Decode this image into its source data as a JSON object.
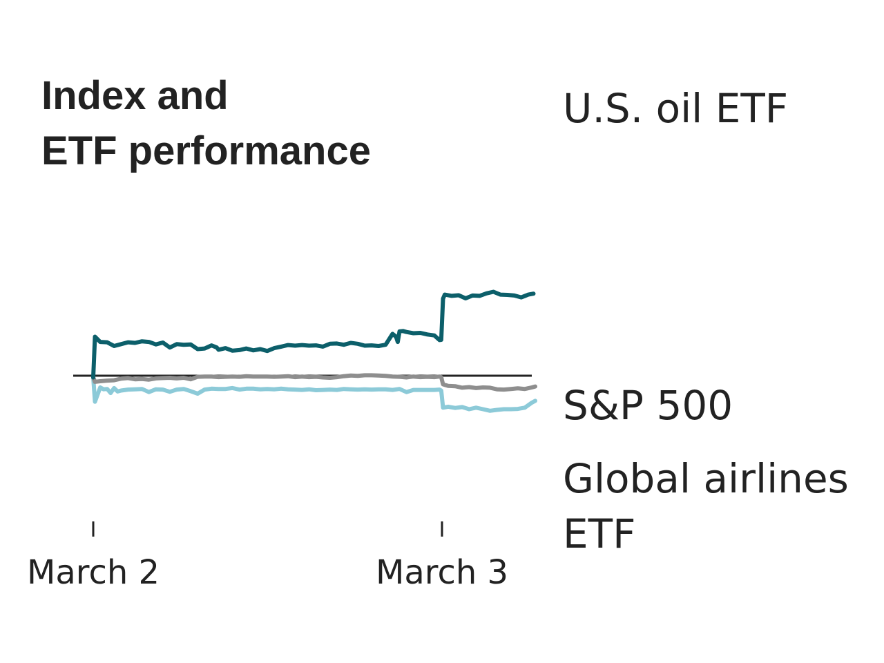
{
  "chart_data": {
    "type": "line",
    "title_lines": [
      "Index and",
      "ETF performance"
    ],
    "xlabel": "",
    "ylabel": "",
    "x_ticks": [
      {
        "label": "March 2",
        "x": 0
      },
      {
        "label": "March 3",
        "x": 1
      }
    ],
    "x_range": [
      0,
      1.27
    ],
    "y_range": [
      -0.044,
      0.0857
    ],
    "baseline": 0,
    "series": [
      {
        "name": "U.S. oil ETF",
        "label_lines": [
          "U.S. oil ETF"
        ],
        "color": "#0c5f6a",
        "x": [
          0,
          0.005,
          0.02,
          0.04,
          0.06,
          0.08,
          0.1,
          0.12,
          0.14,
          0.16,
          0.18,
          0.2,
          0.22,
          0.24,
          0.26,
          0.28,
          0.3,
          0.32,
          0.34,
          0.355,
          0.36,
          0.38,
          0.4,
          0.42,
          0.44,
          0.46,
          0.48,
          0.5,
          0.52,
          0.54,
          0.56,
          0.58,
          0.6,
          0.62,
          0.64,
          0.66,
          0.68,
          0.7,
          0.72,
          0.74,
          0.76,
          0.78,
          0.8,
          0.82,
          0.84,
          0.86,
          0.87,
          0.875,
          0.88,
          0.89,
          0.9,
          0.92,
          0.94,
          0.96,
          0.98,
          0.99,
          0.995,
          1.0,
          1.005,
          1.01,
          1.03,
          1.05,
          1.07,
          1.09,
          1.11,
          1.13,
          1.15,
          1.17,
          1.19,
          1.21,
          1.23,
          1.25,
          1.265
        ],
        "values": [
          0,
          0.0131,
          0.0114,
          0.0113,
          0.0101,
          0.0107,
          0.0113,
          0.0111,
          0.0116,
          0.0114,
          0.0106,
          0.0112,
          0.0096,
          0.0107,
          0.0105,
          0.0106,
          0.0091,
          0.0093,
          0.0103,
          0.0096,
          0.0089,
          0.0094,
          0.0086,
          0.0088,
          0.0093,
          0.0087,
          0.0091,
          0.0085,
          0.0094,
          0.0099,
          0.0104,
          0.0102,
          0.0104,
          0.0102,
          0.0103,
          0.0099,
          0.0108,
          0.0109,
          0.0105,
          0.0111,
          0.0108,
          0.0102,
          0.0103,
          0.0101,
          0.0105,
          0.014,
          0.0131,
          0.0114,
          0.0148,
          0.0149,
          0.0146,
          0.0142,
          0.0143,
          0.0138,
          0.0135,
          0.0125,
          0.012,
          0.0121,
          0.0253,
          0.0266,
          0.0262,
          0.0264,
          0.0254,
          0.0263,
          0.0262,
          0.027,
          0.0275,
          0.0266,
          0.0265,
          0.0263,
          0.0257,
          0.0266,
          0.0269
        ]
      },
      {
        "name": "S&P 500",
        "label_lines": [
          "S&P 500"
        ],
        "color": "#8e8e8e",
        "x": [
          0,
          0.005,
          0.02,
          0.04,
          0.06,
          0.08,
          0.1,
          0.12,
          0.14,
          0.16,
          0.18,
          0.2,
          0.22,
          0.24,
          0.26,
          0.28,
          0.3,
          0.32,
          0.34,
          0.36,
          0.38,
          0.4,
          0.42,
          0.44,
          0.46,
          0.48,
          0.5,
          0.52,
          0.54,
          0.56,
          0.58,
          0.6,
          0.62,
          0.64,
          0.66,
          0.68,
          0.7,
          0.72,
          0.74,
          0.76,
          0.78,
          0.8,
          0.82,
          0.84,
          0.86,
          0.88,
          0.9,
          0.92,
          0.94,
          0.96,
          0.98,
          0.995,
          1.0,
          1.005,
          1.02,
          1.04,
          1.06,
          1.08,
          1.1,
          1.12,
          1.14,
          1.16,
          1.18,
          1.2,
          1.22,
          1.24,
          1.26,
          1.27
        ],
        "values": [
          0,
          -0.0014,
          -0.0012,
          -0.001,
          -0.0009,
          -0.0004,
          -0.0002,
          -0.0006,
          -0.0005,
          -0.0007,
          -0.0003,
          -0.0002,
          -0.0001,
          -0.0003,
          -0.0001,
          -0.0006,
          0.0002,
          0.0003,
          0.0003,
          0.0001,
          0.0002,
          0.0003,
          0.0002,
          0.0004,
          0.0003,
          0.0003,
          0.0003,
          0.0002,
          0.0003,
          0.0004,
          0.0001,
          0.0003,
          0.0001,
          0.0002,
          0.0,
          -0.0001,
          0.0001,
          0.0004,
          0.0006,
          0.0005,
          0.0007,
          0.0007,
          0.0006,
          0.0005,
          0.0003,
          0.0002,
          0.0,
          0.0003,
          0.0001,
          0.0002,
          0.0001,
          0.0003,
          0.0001,
          -0.0022,
          -0.0027,
          -0.0028,
          -0.0033,
          -0.0031,
          -0.0034,
          -0.0032,
          -0.0033,
          -0.0038,
          -0.0039,
          -0.0037,
          -0.0035,
          -0.0037,
          -0.0032,
          -0.0029
        ]
      },
      {
        "name": "Global airlines ETF",
        "label_lines": [
          "Global airlines",
          "ETF"
        ],
        "color": "#8ccad8",
        "x": [
          0,
          0.005,
          0.02,
          0.03,
          0.04,
          0.05,
          0.06,
          0.07,
          0.08,
          0.1,
          0.12,
          0.14,
          0.16,
          0.18,
          0.2,
          0.22,
          0.24,
          0.26,
          0.28,
          0.3,
          0.32,
          0.34,
          0.36,
          0.38,
          0.4,
          0.42,
          0.44,
          0.46,
          0.48,
          0.5,
          0.52,
          0.54,
          0.56,
          0.58,
          0.6,
          0.62,
          0.64,
          0.66,
          0.68,
          0.7,
          0.72,
          0.74,
          0.76,
          0.78,
          0.8,
          0.82,
          0.84,
          0.86,
          0.88,
          0.9,
          0.92,
          0.94,
          0.96,
          0.98,
          0.995,
          1.0,
          1.005,
          1.02,
          1.04,
          1.06,
          1.08,
          1.1,
          1.12,
          1.14,
          1.16,
          1.18,
          1.2,
          1.22,
          1.24,
          1.26,
          1.27
        ],
        "values": [
          0,
          -0.0078,
          -0.0032,
          -0.0038,
          -0.0037,
          -0.005,
          -0.0034,
          -0.0045,
          -0.0042,
          -0.0039,
          -0.0038,
          -0.0037,
          -0.0047,
          -0.0038,
          -0.0039,
          -0.0046,
          -0.0039,
          -0.0037,
          -0.0044,
          -0.0052,
          -0.0039,
          -0.0036,
          -0.0037,
          -0.0037,
          -0.0034,
          -0.0039,
          -0.0036,
          -0.0036,
          -0.0038,
          -0.0037,
          -0.0038,
          -0.0036,
          -0.0038,
          -0.0039,
          -0.004,
          -0.0038,
          -0.0041,
          -0.004,
          -0.0039,
          -0.004,
          -0.0037,
          -0.0038,
          -0.0039,
          -0.0038,
          -0.0039,
          -0.0038,
          -0.0038,
          -0.004,
          -0.0037,
          -0.0047,
          -0.004,
          -0.004,
          -0.004,
          -0.004,
          -0.0039,
          -0.0042,
          -0.0097,
          -0.0094,
          -0.0098,
          -0.0095,
          -0.0102,
          -0.0097,
          -0.0102,
          -0.0107,
          -0.0104,
          -0.0102,
          -0.0102,
          -0.0101,
          -0.0097,
          -0.0081,
          -0.0075
        ]
      }
    ]
  }
}
